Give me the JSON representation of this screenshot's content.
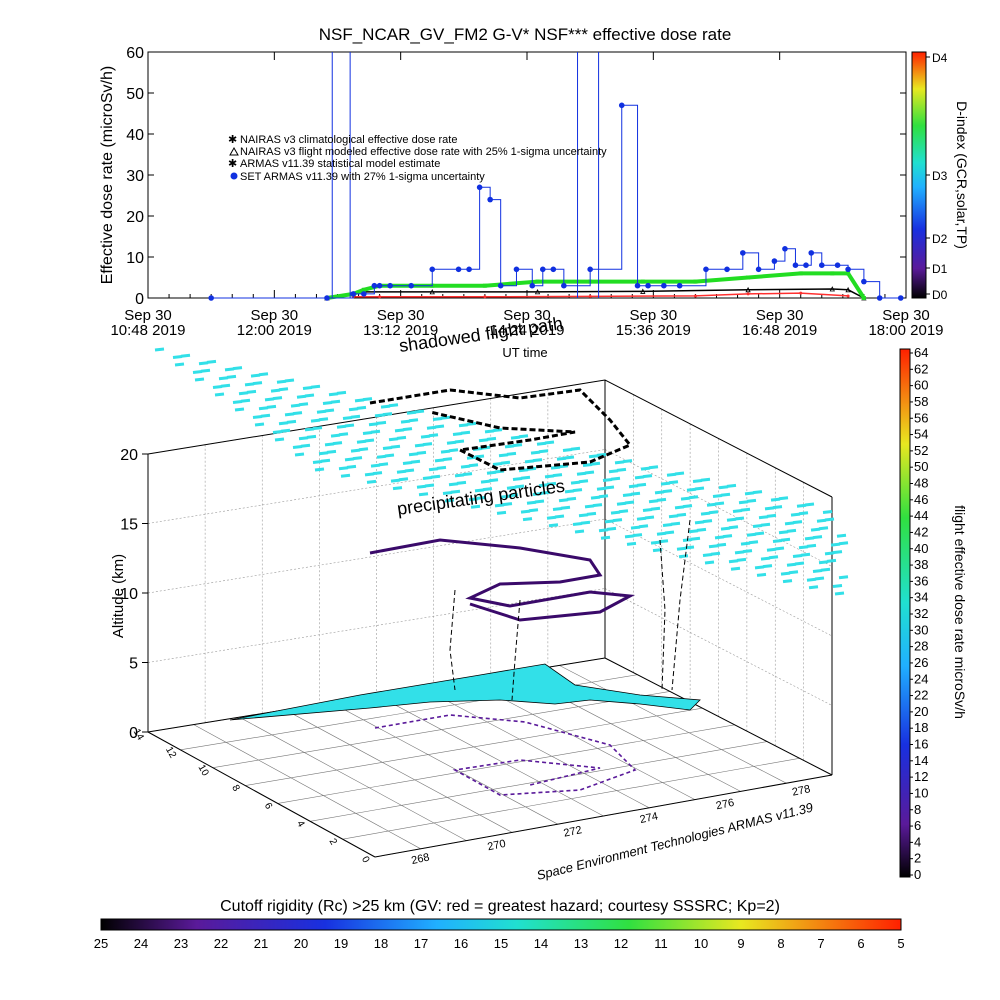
{
  "chart_data": [
    {
      "type": "line",
      "title": "NSF_NCAR_GV_FM2 G-V* NSF*** effective dose rate",
      "ylabel": "Effective dose rate (microSv/h)",
      "xlabel": "UT time",
      "ylim": [
        0,
        60
      ],
      "yticks": [
        "0",
        "10",
        "20",
        "30",
        "40",
        "50",
        "60"
      ],
      "xticks": [
        {
          "date": "Sep 30",
          "time": "10:48 2019"
        },
        {
          "date": "Sep 30",
          "time": "12:00 2019"
        },
        {
          "date": "Sep 30",
          "time": "13:12 2019"
        },
        {
          "date": "Sep 30",
          "time": "14:24 2019"
        },
        {
          "date": "Sep 30",
          "time": "15:36 2019"
        },
        {
          "date": "Sep 30",
          "time": "16:48 2019"
        },
        {
          "date": "Sep 30",
          "time": "18:00 2019"
        }
      ],
      "xrange_hours": [
        10.8,
        18.0
      ],
      "legend": [
        {
          "label": "NAIRAS v3 climatological effective dose rate",
          "color": "#ff3030",
          "marker": "*"
        },
        {
          "label": "NAIRAS v3 flight modeled effective dose rate with 25% 1-sigma uncertainty",
          "color": "#000000",
          "marker": "triangle"
        },
        {
          "label": "ARMAS v11.39 statistical model estimate",
          "color": "#22dd22",
          "marker": "*"
        },
        {
          "label": "SET ARMAS v11.39 with 27% 1-sigma uncertainty",
          "color": "#1030e0",
          "marker": "circle"
        }
      ],
      "series": [
        {
          "name": "SET ARMAS v11.39 with 27% 1-sigma uncertainty",
          "color": "#1030e0",
          "x": [
            11.4,
            12.5,
            12.75,
            12.85,
            12.95,
            13.0,
            13.1,
            13.3,
            13.5,
            13.75,
            13.85,
            13.95,
            14.05,
            14.15,
            14.3,
            14.45,
            14.55,
            14.65,
            14.75,
            15.0,
            15.3,
            15.45,
            15.55,
            15.7,
            15.85,
            16.1,
            16.3,
            16.45,
            16.6,
            16.75,
            16.85,
            16.95,
            17.05,
            17.1,
            17.2,
            17.35,
            17.45,
            17.6,
            17.75,
            17.95
          ],
          "y": [
            0,
            0,
            1,
            1,
            3,
            3,
            3,
            3,
            7,
            7,
            7,
            27,
            24,
            3,
            7,
            3,
            7,
            7,
            3,
            7,
            47,
            3,
            3,
            3,
            3,
            7,
            7,
            11,
            7,
            9,
            12,
            8,
            8,
            11,
            8,
            8,
            7,
            4,
            0,
            0
          ]
        },
        {
          "name": "ARMAS v11.39 statistical model estimate",
          "color": "#22dd22",
          "x": [
            12.5,
            12.75,
            12.85,
            13.0,
            13.5,
            14.0,
            14.5,
            15.0,
            15.5,
            16.0,
            16.5,
            17.0,
            17.3,
            17.45,
            17.6
          ],
          "y": [
            0,
            1,
            2,
            3,
            3,
            3,
            4,
            4,
            4,
            4,
            5,
            6,
            6,
            6,
            0
          ]
        },
        {
          "name": "NAIRAS v3 flight modeled effective dose rate with 25% 1-sigma uncertainty",
          "color": "#000000",
          "x": [
            12.5,
            12.75,
            12.85,
            13.5,
            14.5,
            15.5,
            16.5,
            17.3,
            17.45,
            17.6
          ],
          "y": [
            0,
            1,
            1.5,
            1.5,
            1.5,
            1.6,
            2.0,
            2.2,
            2.0,
            0
          ]
        },
        {
          "name": "NAIRAS v3 climatological effective dose rate",
          "color": "#ff3030",
          "x": [
            12.75,
            13.0,
            14.0,
            15.0,
            16.0,
            16.5,
            17.0,
            17.45
          ],
          "y": [
            0.3,
            0.3,
            0.3,
            0.4,
            0.5,
            1.0,
            1.2,
            0.5
          ]
        }
      ],
      "right_axis": {
        "label": "D-index (GCR,solar,TP)",
        "ticks": [
          "D0",
          "D1",
          "D2",
          "D3",
          "D4"
        ]
      }
    },
    {
      "type": "scatter",
      "subtype": "3d",
      "labels": [
        "shadowed flight path",
        "precipitating particles"
      ],
      "zlabel": "Altitude (km)",
      "zticks": [
        "0",
        "5",
        "10",
        "15",
        "20"
      ],
      "lon_ticks": [
        "268",
        "270",
        "272",
        "274",
        "276",
        "278"
      ],
      "lat_ticks": [
        "0",
        "2",
        "4",
        "6",
        "8",
        "10",
        "12",
        "14"
      ],
      "credit": "Space Environment Technologies ARMAS v11.39",
      "colorbar": {
        "label": "flight effective dose rate microSv/h",
        "ticks": [
          "0",
          "2",
          "4",
          "6",
          "8",
          "10",
          "12",
          "14",
          "16",
          "18",
          "20",
          "22",
          "24",
          "26",
          "28",
          "30",
          "32",
          "34",
          "36",
          "38",
          "40",
          "42",
          "44",
          "46",
          "48",
          "50",
          "52",
          "54",
          "56",
          "58",
          "60",
          "62",
          "64"
        ]
      }
    },
    {
      "type": "heatmap",
      "subtype": "colorbar",
      "title": "Cutoff rigidity (Rc) >25 km (GV: red = greatest hazard; courtesy SSSRC; Kp=2)",
      "ticks": [
        "25",
        "24",
        "23",
        "22",
        "21",
        "20",
        "19",
        "18",
        "17",
        "16",
        "15",
        "14",
        "13",
        "12",
        "11",
        "10",
        "9",
        "8",
        "7",
        "6",
        "5"
      ]
    }
  ],
  "colors": {
    "blue": "#1030e0",
    "cyan": "#32e0e8",
    "green": "#22dd22",
    "red": "#ff3030"
  }
}
